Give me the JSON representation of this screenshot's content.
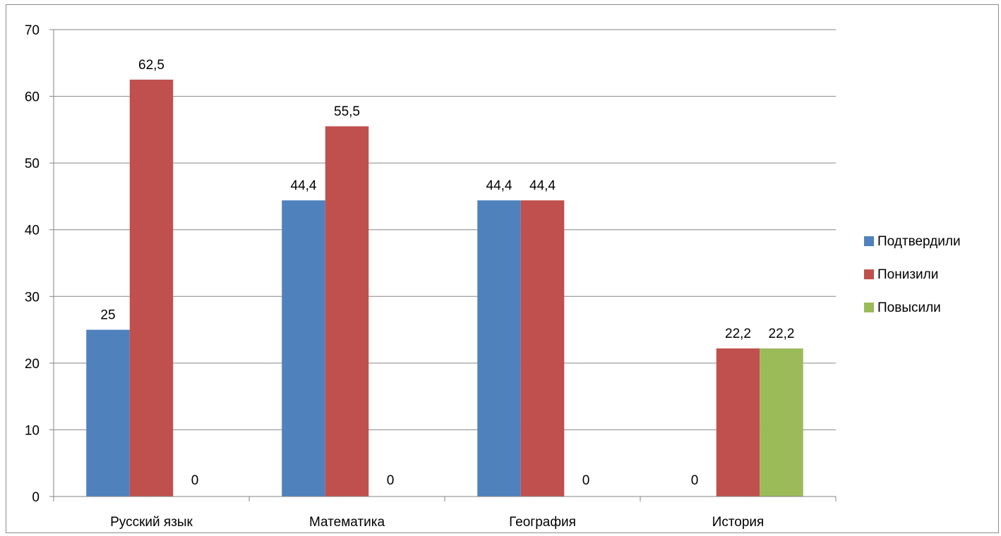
{
  "chart_data": {
    "type": "bar",
    "categories": [
      "Русский язык",
      "Математика",
      "География",
      "История"
    ],
    "series": [
      {
        "name": "Подтвердили",
        "color": "#4F81BD",
        "values": [
          25,
          44.4,
          44.4,
          0
        ],
        "labels": [
          "25",
          "44,4",
          "44,4",
          "0"
        ]
      },
      {
        "name": "Понизили",
        "color": "#C0504D",
        "values": [
          62.5,
          55.5,
          44.4,
          22.2
        ],
        "labels": [
          "62,5",
          "55,5",
          "44,4",
          "22,2"
        ]
      },
      {
        "name": "Повысили",
        "color": "#9BBB59",
        "values": [
          0,
          0,
          0,
          22.2
        ],
        "labels": [
          "0",
          "0",
          "0",
          "22,2"
        ]
      }
    ],
    "y_ticks": [
      "0",
      "10",
      "20",
      "30",
      "40",
      "50",
      "60",
      "70"
    ],
    "ylim": [
      0,
      70
    ],
    "grid": true,
    "legend_position": "right",
    "title": "",
    "xlabel": "",
    "ylabel": ""
  }
}
